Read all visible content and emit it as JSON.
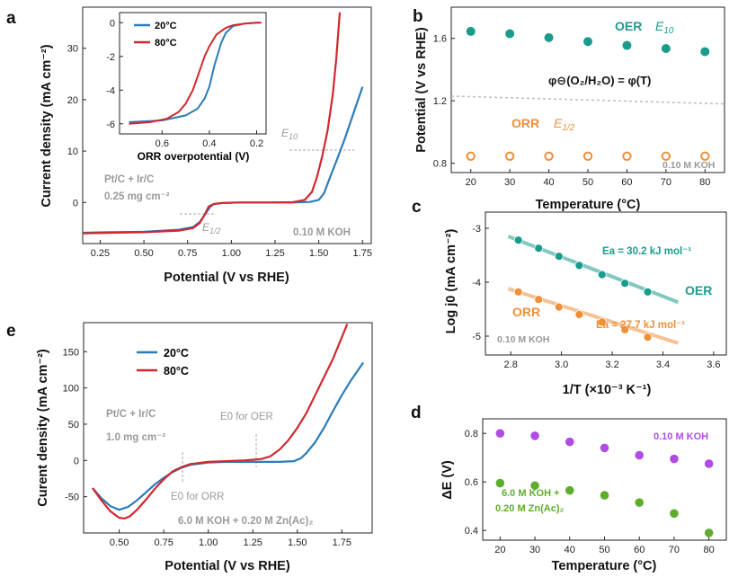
{
  "colors": {
    "blue": "#2b7bba",
    "red": "#d0282e",
    "teal": "#1a9c8c",
    "orange": "#ef8f3a",
    "purple": "#b04ce6",
    "green": "#5fad2d",
    "gray": "#9a9a9a"
  },
  "chart_data": [
    {
      "id": "a",
      "type": "line",
      "label": "a",
      "xlabel": "Potential (V vs RHE)",
      "ylabel": "Current density (mA cm⁻²)",
      "xlim": [
        0.15,
        1.8
      ],
      "ylim": [
        -8,
        38
      ],
      "xticks": [
        "0.25",
        "0.50",
        "0.75",
        "1.00",
        "1.25",
        "1.50",
        "1.75"
      ],
      "yticks": [
        "0",
        "10",
        "20",
        "30"
      ],
      "annotations": {
        "catalyst": "Pt/C + Ir/C",
        "loading": "0.25 mg cm⁻²",
        "electrolyte": "0.10 M KOH",
        "e10_main": "E",
        "e10_sub": "10",
        "e12_main": "E",
        "e12_sub": "1/2"
      },
      "series": [
        {
          "name": "20°C",
          "color": "#2b7bba",
          "x": [
            0.15,
            0.3,
            0.5,
            0.7,
            0.78,
            0.82,
            0.85,
            0.88,
            0.9,
            0.95,
            1.05,
            1.2,
            1.22,
            1.35,
            1.45,
            1.5,
            1.53,
            1.56,
            1.6,
            1.65,
            1.7,
            1.75
          ],
          "y": [
            -5.9,
            -5.8,
            -5.7,
            -5.3,
            -4.8,
            -3.8,
            -2.3,
            -0.8,
            -0.3,
            -0.1,
            0,
            0,
            0,
            0,
            0.1,
            0.5,
            1.8,
            4.5,
            8,
            12.5,
            17.5,
            22.5
          ]
        },
        {
          "name": "80°C",
          "color": "#d0282e",
          "x": [
            0.15,
            0.3,
            0.5,
            0.7,
            0.78,
            0.82,
            0.85,
            0.87,
            0.9,
            0.95,
            1.05,
            1.2,
            1.22,
            1.35,
            1.42,
            1.46,
            1.49,
            1.52,
            1.55,
            1.58,
            1.6,
            1.62
          ],
          "y": [
            -6,
            -5.9,
            -5.8,
            -5.5,
            -5,
            -4,
            -2.2,
            -0.8,
            -0.3,
            -0.1,
            0,
            0,
            0,
            0.05,
            0.5,
            2,
            5,
            9,
            14,
            21,
            28,
            37
          ]
        }
      ],
      "inset": {
        "xlabel": "ORR overpotential (V)",
        "xlim": [
          0.78,
          0.16
        ],
        "ylim": [
          -6.6,
          0.6
        ],
        "xticks": [
          "0.6",
          "0.4",
          "0.2"
        ],
        "yticks": [
          "0",
          "-2",
          "-4",
          "-6"
        ],
        "series": [
          {
            "name": "20°C",
            "color": "#2b7bba",
            "x": [
              0.74,
              0.6,
              0.5,
              0.45,
              0.42,
              0.4,
              0.38,
              0.35,
              0.33,
              0.3,
              0.25,
              0.2,
              0.18
            ],
            "y": [
              -5.9,
              -5.8,
              -5.5,
              -5.1,
              -4.5,
              -3.8,
              -2.6,
              -1.2,
              -0.6,
              -0.2,
              -0.05,
              0,
              0
            ]
          },
          {
            "name": "80°C",
            "color": "#d0282e",
            "x": [
              0.74,
              0.65,
              0.58,
              0.53,
              0.5,
              0.47,
              0.44,
              0.42,
              0.4,
              0.37,
              0.33,
              0.3,
              0.25,
              0.2,
              0.18
            ],
            "y": [
              -6,
              -5.9,
              -5.7,
              -5.3,
              -4.8,
              -4,
              -2.8,
              -2,
              -1.4,
              -0.7,
              -0.3,
              -0.15,
              -0.05,
              0,
              0
            ]
          }
        ]
      }
    },
    {
      "id": "b",
      "type": "scatter",
      "label": "b",
      "xlabel": "Temperature (°C)",
      "ylabel": "Potential (V vs RHE)",
      "xlim": [
        15,
        85
      ],
      "ylim": [
        0.74,
        1.8
      ],
      "xticks": [
        "20",
        "30",
        "40",
        "50",
        "60",
        "70",
        "80"
      ],
      "yticks": [
        "0.8",
        "1.2",
        "1.6"
      ],
      "annotations": {
        "electrolyte": "0.10 M KOH",
        "equilibrium": "φ⊖(O₂/H₂O) = φ(T)",
        "oer_label": "OER",
        "e10_main": "E",
        "e10_sub": "10",
        "orr_label": "ORR",
        "e12_main": "E",
        "e12_sub": "1/2"
      },
      "series": [
        {
          "name": "OER E10",
          "color": "#1a9c8c",
          "x": [
            20,
            30,
            40,
            50,
            60,
            70,
            80
          ],
          "y": [
            1.645,
            1.63,
            1.605,
            1.58,
            1.555,
            1.535,
            1.515
          ]
        },
        {
          "name": "ORR E1/2",
          "color": "#ef8f3a",
          "x": [
            20,
            30,
            40,
            50,
            60,
            70,
            80
          ],
          "y": [
            0.845,
            0.845,
            0.845,
            0.845,
            0.845,
            0.845,
            0.845
          ]
        },
        {
          "name": "equilibrium",
          "color": "#9a9a9a",
          "x": [
            15,
            85
          ],
          "y": [
            1.23,
            1.18
          ]
        }
      ]
    },
    {
      "id": "c",
      "type": "scatter",
      "label": "c",
      "xlabel": "1/T (×10⁻³ K⁻¹)",
      "ylabel": "Log j0 (mA cm⁻²)",
      "xlim": [
        2.7,
        3.65
      ],
      "ylim": [
        -5.35,
        -2.7
      ],
      "xticks": [
        "2.8",
        "3.0",
        "3.2",
        "3.4",
        "3.6"
      ],
      "yticks": [
        "-3",
        "-4",
        "-5"
      ],
      "annotations": {
        "electrolyte": "0.10 M KOH",
        "oer_label": "OER",
        "orr_label": "ORR",
        "ea_oer": "Ea = 30.2 kJ mol⁻¹",
        "ea_orr": "Ea = 27.7 kJ mol⁻¹"
      },
      "series": [
        {
          "name": "OER",
          "color": "#1a9c8c",
          "x": [
            2.83,
            2.91,
            2.99,
            3.07,
            3.16,
            3.25,
            3.34
          ],
          "y": [
            -3.22,
            -3.37,
            -3.52,
            -3.69,
            -3.86,
            -4.02,
            -4.18
          ]
        },
        {
          "name": "ORR",
          "color": "#ef8f3a",
          "x": [
            2.83,
            2.91,
            2.99,
            3.07,
            3.16,
            3.25,
            3.34
          ],
          "y": [
            -4.18,
            -4.32,
            -4.46,
            -4.6,
            -4.74,
            -4.88,
            -5.02
          ]
        }
      ],
      "fits": [
        {
          "color": "#1a9c8c",
          "x": [
            2.79,
            3.46
          ],
          "y": [
            -3.15,
            -4.37
          ]
        },
        {
          "color": "#ef8f3a",
          "x": [
            2.79,
            3.46
          ],
          "y": [
            -4.12,
            -5.13
          ]
        }
      ]
    },
    {
      "id": "d",
      "type": "scatter",
      "label": "d",
      "xlabel": "Temperature (°C)",
      "ylabel": "ΔE (V)",
      "xlim": [
        15,
        85
      ],
      "ylim": [
        0.36,
        0.86
      ],
      "xticks": [
        "20",
        "30",
        "40",
        "50",
        "60",
        "70",
        "80"
      ],
      "yticks": [
        "0.4",
        "0.6",
        "0.8"
      ],
      "annotations": {
        "kohlow": "0.10 M KOH",
        "kohhigh1": "6.0 M KOH +",
        "kohhigh2": "0.20 M Zn(Ac)₂"
      },
      "series": [
        {
          "name": "0.10 M KOH",
          "color": "#b04ce6",
          "x": [
            20,
            30,
            40,
            50,
            60,
            70,
            80
          ],
          "y": [
            0.8,
            0.79,
            0.765,
            0.74,
            0.71,
            0.695,
            0.675
          ]
        },
        {
          "name": "6.0 M KOH + 0.20 M Zn(Ac)2",
          "color": "#5fad2d",
          "x": [
            20,
            30,
            40,
            50,
            60,
            70,
            80
          ],
          "y": [
            0.595,
            0.585,
            0.565,
            0.545,
            0.515,
            0.47,
            0.39
          ]
        }
      ]
    },
    {
      "id": "e",
      "type": "line",
      "label": "e",
      "xlabel": "Potential (V vs RHE)",
      "ylabel": "Curent density (mA cm⁻²)",
      "xlim": [
        0.3,
        1.92
      ],
      "ylim": [
        -100,
        190
      ],
      "xticks": [
        "0.50",
        "0.75",
        "1.00",
        "1.25",
        "1.50",
        "1.75"
      ],
      "yticks": [
        "-50",
        "0",
        "50",
        "100",
        "150"
      ],
      "annotations": {
        "catalyst": "Pt/C + Ir/C",
        "loading": "1.0 mg cm⁻²",
        "e0_oer": "E0 for OER",
        "e0_orr": "E0 for ORR",
        "electrolyte": "6.0 M KOH + 0.20 M Zn(Ac)₂"
      },
      "series": [
        {
          "name": "20°C",
          "color": "#2b7bba",
          "x": [
            0.35,
            0.4,
            0.45,
            0.5,
            0.55,
            0.6,
            0.65,
            0.7,
            0.75,
            0.8,
            0.85,
            0.9,
            1,
            1.1,
            1.2,
            1.3,
            1.4,
            1.48,
            1.52,
            1.55,
            1.6,
            1.65,
            1.7,
            1.75,
            1.8,
            1.87
          ],
          "y": [
            -38,
            -52,
            -63,
            -68,
            -64,
            -55,
            -44,
            -33,
            -24,
            -16,
            -10,
            -6,
            -3,
            -2,
            -2,
            -2,
            -2,
            -1,
            3,
            10,
            25,
            45,
            68,
            90,
            110,
            135
          ]
        },
        {
          "name": "80°C",
          "color": "#d0282e",
          "x": [
            0.35,
            0.4,
            0.45,
            0.5,
            0.53,
            0.56,
            0.6,
            0.65,
            0.7,
            0.75,
            0.8,
            0.85,
            0.9,
            1,
            1.1,
            1.2,
            1.3,
            1.35,
            1.4,
            1.45,
            1.5,
            1.55,
            1.6,
            1.65,
            1.7,
            1.78
          ],
          "y": [
            -38,
            -55,
            -70,
            -79,
            -80,
            -77,
            -68,
            -54,
            -39,
            -26,
            -15,
            -9,
            -5,
            -2,
            -1,
            0,
            2,
            6,
            15,
            28,
            45,
            65,
            90,
            115,
            140,
            188
          ]
        }
      ]
    }
  ]
}
